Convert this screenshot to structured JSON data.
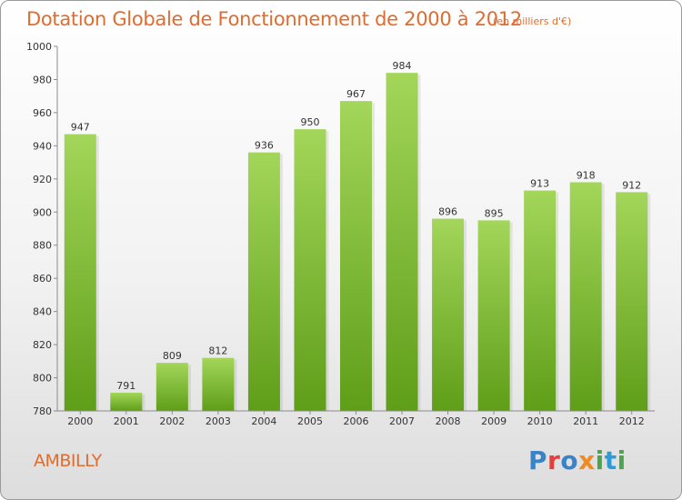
{
  "header": {
    "title": "Dotation Globale de Fonctionnement de 2000 à 2012",
    "subtitle": "(en milliers d'€)"
  },
  "footer": {
    "place": "AMBILLY",
    "logo": "Proxiti",
    "logo_colors": [
      "#3a83c6",
      "#e2403a",
      "#f08a25",
      "#4aa64a",
      "#2c9bd6"
    ]
  },
  "colors": {
    "title": "#e06c2f",
    "bar_top": "#a3d65a",
    "bar_bottom": "#5f9e19",
    "axis": "#8c8c8c",
    "label": "#333333"
  },
  "chart_data": {
    "type": "bar",
    "title": "Dotation Globale de Fonctionnement de 2000 à 2012",
    "subtitle": "(en milliers d'€)",
    "xlabel": "",
    "ylabel": "",
    "categories": [
      "2000",
      "2001",
      "2002",
      "2003",
      "2004",
      "2005",
      "2006",
      "2007",
      "2008",
      "2009",
      "2010",
      "2011",
      "2012"
    ],
    "values": [
      947,
      791,
      809,
      812,
      936,
      950,
      967,
      984,
      896,
      895,
      913,
      918,
      912
    ],
    "ylim": [
      780,
      1000
    ],
    "yticks": [
      780,
      800,
      820,
      840,
      860,
      880,
      900,
      920,
      940,
      960,
      980,
      1000
    ],
    "grid": false,
    "legend": "none"
  }
}
